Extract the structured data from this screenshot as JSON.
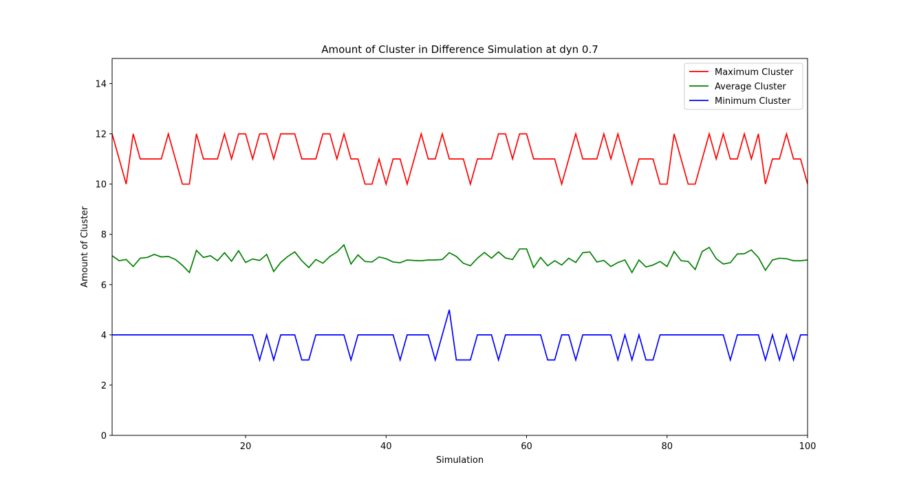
{
  "chart_data": {
    "type": "line",
    "title": "Amount of Cluster in Difference Simulation at dyn 0.7",
    "xlabel": "Simulation",
    "ylabel": "Amount of Cluster",
    "xlim": [
      1,
      100
    ],
    "ylim": [
      0,
      15
    ],
    "xticks": [
      20,
      40,
      60,
      80,
      100
    ],
    "yticks": [
      0,
      2,
      4,
      6,
      8,
      10,
      12,
      14
    ],
    "grid": false,
    "legend_position": "top-right",
    "x": [
      1,
      2,
      3,
      4,
      5,
      6,
      7,
      8,
      9,
      10,
      11,
      12,
      13,
      14,
      15,
      16,
      17,
      18,
      19,
      20,
      21,
      22,
      23,
      24,
      25,
      26,
      27,
      28,
      29,
      30,
      31,
      32,
      33,
      34,
      35,
      36,
      37,
      38,
      39,
      40,
      41,
      42,
      43,
      44,
      45,
      46,
      47,
      48,
      49,
      50,
      51,
      52,
      53,
      54,
      55,
      56,
      57,
      58,
      59,
      60,
      61,
      62,
      63,
      64,
      65,
      66,
      67,
      68,
      69,
      70,
      71,
      72,
      73,
      74,
      75,
      76,
      77,
      78,
      79,
      80,
      81,
      82,
      83,
      84,
      85,
      86,
      87,
      88,
      89,
      90,
      91,
      92,
      93,
      94,
      95,
      96,
      97,
      98,
      99,
      100
    ],
    "series": [
      {
        "name": "Maximum Cluster",
        "color": "#ff0000",
        "values": [
          12,
          11,
          10,
          12,
          11,
          11,
          11,
          11,
          12,
          11,
          10,
          10,
          12,
          11,
          11,
          11,
          12,
          11,
          12,
          12,
          11,
          12,
          12,
          11,
          12,
          12,
          12,
          11,
          11,
          11,
          12,
          12,
          11,
          12,
          11,
          11,
          10,
          10,
          11,
          10,
          11,
          11,
          10,
          11,
          12,
          11,
          11,
          12,
          11,
          11,
          11,
          10,
          11,
          11,
          11,
          12,
          12,
          11,
          12,
          12,
          11,
          11,
          11,
          11,
          10,
          11,
          12,
          11,
          11,
          11,
          12,
          11,
          12,
          11,
          10,
          11,
          11,
          11,
          10,
          10,
          12,
          11,
          10,
          10,
          11,
          12,
          11,
          12,
          11,
          11,
          12,
          11,
          12,
          10,
          11,
          11,
          12,
          11,
          11,
          10
        ]
      },
      {
        "name": "Average Cluster",
        "color": "#008000",
        "values": [
          7.15,
          6.95,
          7.0,
          6.72,
          7.05,
          7.08,
          7.2,
          7.1,
          7.12,
          7.0,
          6.77,
          6.48,
          7.36,
          7.08,
          7.15,
          6.95,
          7.27,
          6.93,
          7.35,
          6.88,
          7.02,
          6.96,
          7.2,
          6.52,
          6.88,
          7.12,
          7.3,
          6.95,
          6.68,
          7.0,
          6.85,
          7.12,
          7.3,
          7.58,
          6.82,
          7.18,
          6.92,
          6.9,
          7.1,
          7.03,
          6.9,
          6.87,
          6.98,
          6.96,
          6.95,
          6.98,
          6.98,
          7.0,
          7.27,
          7.12,
          6.85,
          6.75,
          7.05,
          7.28,
          7.05,
          7.3,
          7.06,
          7.0,
          7.42,
          7.42,
          6.68,
          7.08,
          6.75,
          6.95,
          6.78,
          7.05,
          6.88,
          7.27,
          7.3,
          6.9,
          6.96,
          6.72,
          6.88,
          6.98,
          6.48,
          6.98,
          6.7,
          6.78,
          6.92,
          6.72,
          7.32,
          6.95,
          6.92,
          6.6,
          7.32,
          7.48,
          7.03,
          6.82,
          6.87,
          7.22,
          7.23,
          7.38,
          7.08,
          6.57,
          6.98,
          7.05,
          7.03,
          6.95,
          6.95,
          6.98
        ]
      },
      {
        "name": "Minimum Cluster",
        "color": "#0000ff",
        "values": [
          4,
          4,
          4,
          4,
          4,
          4,
          4,
          4,
          4,
          4,
          4,
          4,
          4,
          4,
          4,
          4,
          4,
          4,
          4,
          4,
          4,
          3,
          4,
          3,
          4,
          4,
          4,
          3,
          3,
          4,
          4,
          4,
          4,
          4,
          3,
          4,
          4,
          4,
          4,
          4,
          4,
          3,
          4,
          4,
          4,
          4,
          3,
          4,
          5,
          3,
          3,
          3,
          4,
          4,
          4,
          3,
          4,
          4,
          4,
          4,
          4,
          4,
          3,
          3,
          4,
          4,
          3,
          4,
          4,
          4,
          4,
          4,
          3,
          4,
          3,
          4,
          3,
          3,
          4,
          4,
          4,
          4,
          4,
          4,
          4,
          4,
          4,
          4,
          3,
          4,
          4,
          4,
          4,
          3,
          4,
          3,
          4,
          3,
          4,
          4
        ]
      }
    ]
  }
}
